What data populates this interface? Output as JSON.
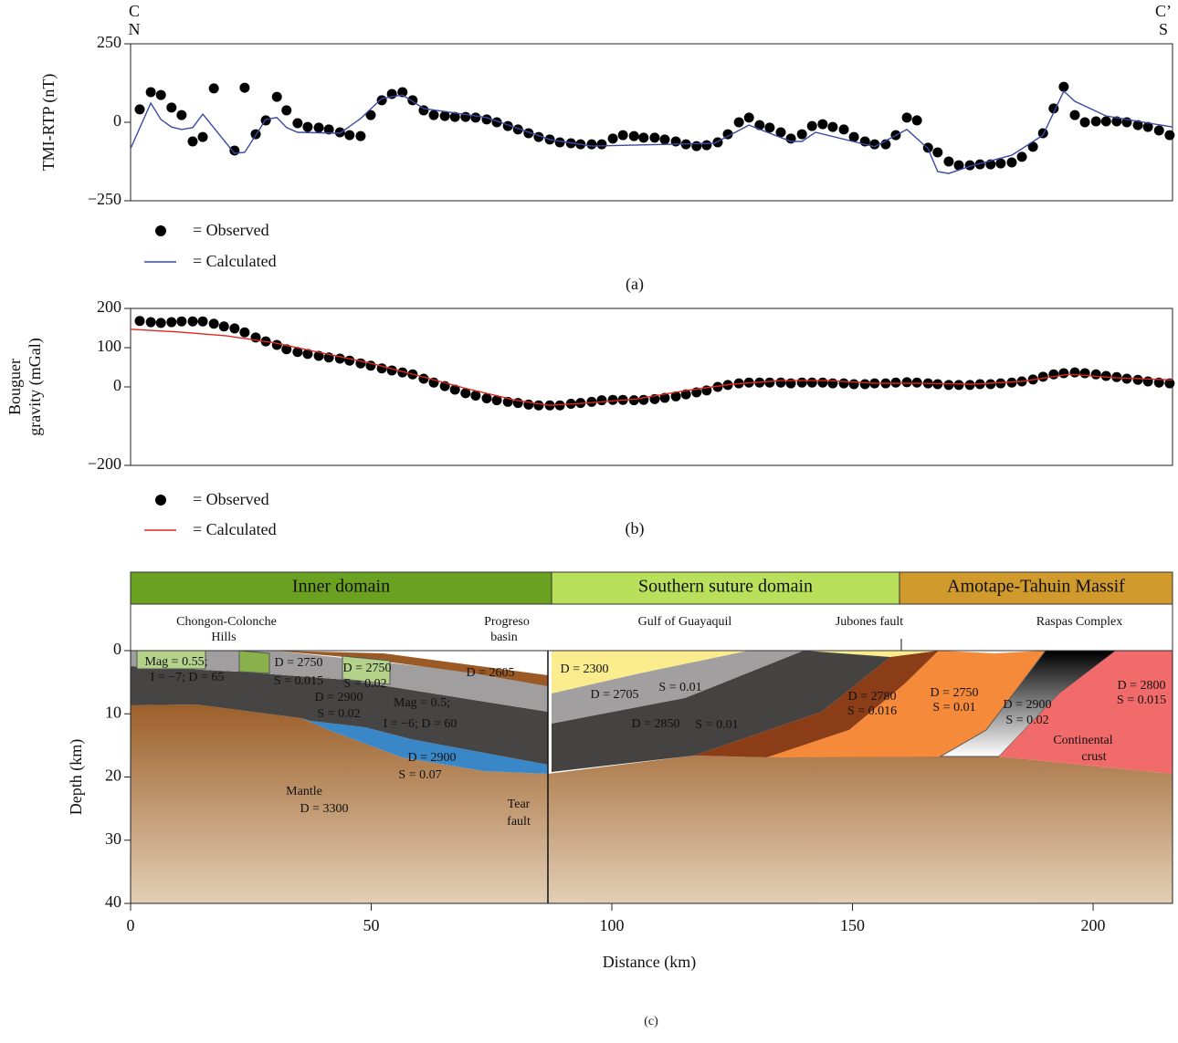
{
  "chart_data": [
    {
      "type": "scatter-line",
      "caption": "(a)",
      "ylabel": "TMI-RTP (nT)",
      "start_labels": [
        "C",
        "N"
      ],
      "end_labels": [
        "C’",
        "S"
      ],
      "xlim": [
        0,
        216.5
      ],
      "ylim": [
        -250,
        250
      ],
      "yticks": [
        250,
        0,
        {
          "value": -250,
          "label": "−250"
        }
      ],
      "series": [
        {
          "name": "= Observed",
          "color": "#000000",
          "x": [
            1.9,
            4.2,
            6.3,
            8.5,
            10.6,
            12.9,
            15.0,
            17.3,
            21.6,
            23.7,
            26.0,
            28.1,
            30.4,
            32.4,
            34.7,
            36.8,
            39.1,
            41.2,
            43.5,
            45.5,
            47.8,
            49.9,
            52.2,
            54.3,
            56.5,
            58.6,
            60.9,
            63.0,
            65.3,
            67.4,
            69.6,
            71.7,
            74.0,
            76.1,
            78.4,
            80.5,
            82.7,
            84.8,
            87.1,
            89.2,
            91.5,
            93.5,
            95.8,
            97.9,
            100.2,
            102.3,
            104.6,
            106.6,
            108.9,
            111.0,
            113.3,
            115.4,
            117.6,
            119.7,
            122.0,
            124.1,
            126.4,
            128.5,
            130.7,
            132.8,
            135.1,
            137.2,
            139.5,
            141.6,
            143.8,
            145.9,
            148.2,
            150.3,
            152.6,
            154.6,
            156.9,
            159.0,
            161.3,
            163.4,
            165.7,
            167.7,
            170.0,
            172.1,
            174.4,
            176.5,
            178.7,
            180.8,
            183.1,
            185.2,
            187.5,
            189.6,
            191.8,
            193.9,
            196.2,
            198.3,
            200.6,
            202.7,
            204.9,
            207.0,
            209.3,
            211.4,
            213.7,
            215.9
          ],
          "values": [
            41,
            96,
            87,
            47,
            23,
            -61,
            -47,
            108,
            -90,
            110,
            -38,
            6,
            81,
            38,
            -3,
            -15,
            -17,
            -23,
            -32,
            -41,
            -44,
            23,
            70,
            90,
            96,
            70,
            38,
            23,
            20,
            17,
            17,
            15,
            9,
            0,
            -12,
            -23,
            -35,
            -47,
            -55,
            -64,
            -67,
            -70,
            -70,
            -70,
            -52,
            -41,
            -44,
            -49,
            -49,
            -55,
            -61,
            -70,
            -76,
            -73,
            -64,
            -38,
            0,
            15,
            -9,
            -17,
            -32,
            -52,
            -38,
            -12,
            -6,
            -15,
            -23,
            -47,
            -61,
            -70,
            -70,
            -41,
            15,
            6,
            -81,
            -96,
            -125,
            -137,
            -137,
            -134,
            -134,
            -131,
            -128,
            -110,
            -78,
            -35,
            44,
            113,
            23,
            0,
            3,
            3,
            3,
            0,
            -9,
            -15,
            -26,
            -41
          ]
        },
        {
          "name": "= Calculated",
          "color": "#3b4aa0",
          "x": [
            0,
            4.2,
            6.3,
            8.5,
            10.6,
            12.9,
            15.0,
            21.6,
            23.7,
            28.1,
            30.4,
            32.4,
            34.7,
            43.5,
            47.8,
            52.2,
            56.5,
            60.9,
            74.0,
            87.1,
            95.8,
            121.3,
            128.5,
            137.2,
            139.5,
            142.3,
            154.6,
            161.3,
            165.7,
            167.7,
            170.0,
            174.4,
            183.1,
            189.6,
            193.9,
            196.2,
            202.7,
            216.5
          ],
          "values": [
            -84,
            61,
            9,
            -15,
            -23,
            -17,
            26,
            -99,
            -96,
            9,
            15,
            -17,
            -32,
            -35,
            12,
            76,
            87,
            44,
            15,
            -55,
            -76,
            -67,
            -9,
            -61,
            -61,
            -32,
            -78,
            -23,
            -84,
            -157,
            -163,
            -140,
            -105,
            -41,
            99,
            67,
            20,
            -15
          ]
        }
      ]
    },
    {
      "type": "scatter-line",
      "caption": "(b)",
      "ylabel": [
        "Bouguer",
        "gravity (mGal)"
      ],
      "xlim": [
        0,
        216.5
      ],
      "ylim": [
        -200,
        200
      ],
      "yticks": [
        200,
        100,
        0,
        {
          "value": -200,
          "label": "−200"
        }
      ],
      "series": [
        {
          "name": "= Observed",
          "color": "#000000",
          "x": [
            1.9,
            4.2,
            6.3,
            8.5,
            10.6,
            12.9,
            15.0,
            17.3,
            19.4,
            21.6,
            23.7,
            26.0,
            28.1,
            30.4,
            32.4,
            34.7,
            36.8,
            39.1,
            41.2,
            43.5,
            45.5,
            47.8,
            49.9,
            52.2,
            54.3,
            56.5,
            58.6,
            60.9,
            63.0,
            65.3,
            67.4,
            69.6,
            71.7,
            74.0,
            76.1,
            78.4,
            80.5,
            82.7,
            84.8,
            87.1,
            89.2,
            91.5,
            93.5,
            95.8,
            97.9,
            100.2,
            102.3,
            104.6,
            106.6,
            108.9,
            111.0,
            113.3,
            115.4,
            117.6,
            119.7,
            122.0,
            124.1,
            126.4,
            128.5,
            130.7,
            132.8,
            135.1,
            137.2,
            139.5,
            141.6,
            143.8,
            145.9,
            148.2,
            150.3,
            152.6,
            154.6,
            156.9,
            159.0,
            161.3,
            163.4,
            165.7,
            167.7,
            170.0,
            172.1,
            174.4,
            176.5,
            178.7,
            180.8,
            183.1,
            185.2,
            187.5,
            189.6,
            191.8,
            193.9,
            196.2,
            198.3,
            200.6,
            202.7,
            204.9,
            207.0,
            209.3,
            211.4,
            213.7,
            215.9
          ],
          "values": [
            168,
            165,
            163,
            165,
            167,
            167,
            167,
            161,
            154,
            149,
            139,
            126,
            116,
            107,
            96,
            89,
            84,
            79,
            75,
            72,
            67,
            60,
            54,
            47,
            42,
            37,
            32,
            21,
            11,
            2,
            -7,
            -16,
            -22,
            -29,
            -34,
            -38,
            -41,
            -45,
            -47,
            -47,
            -47,
            -43,
            -41,
            -38,
            -34,
            -33,
            -33,
            -34,
            -33,
            -31,
            -28,
            -24,
            -19,
            -14,
            -9,
            0,
            5,
            9,
            11,
            11,
            11,
            11,
            9,
            11,
            11,
            11,
            9,
            9,
            7,
            7,
            9,
            9,
            11,
            12,
            11,
            9,
            7,
            5,
            5,
            5,
            7,
            7,
            9,
            11,
            14,
            19,
            26,
            32,
            35,
            37,
            35,
            32,
            28,
            25,
            21,
            18,
            14,
            11,
            9
          ]
        },
        {
          "name": "= Calculated",
          "color": "#e0281e",
          "x": [
            0,
            10,
            20,
            30,
            40,
            50,
            60,
            70,
            80,
            87,
            95,
            105,
            115,
            125,
            135,
            145,
            155,
            165,
            175,
            185,
            195,
            205,
            216.5
          ],
          "values": [
            147,
            140,
            130,
            112,
            86,
            60,
            28,
            -5,
            -34,
            -47,
            -41,
            -31,
            -10,
            7,
            16,
            16,
            9,
            9,
            7,
            14,
            32,
            23,
            18
          ]
        }
      ]
    },
    {
      "type": "cross-section",
      "caption": "(c)",
      "xlabel": "Distance (km)",
      "ylabel": "Depth (km)",
      "xlim": [
        0,
        216.5
      ],
      "ylim": [
        0,
        40
      ],
      "xticks": [
        0,
        50,
        100,
        150,
        200
      ],
      "yticks": [
        0,
        10,
        20,
        30,
        40
      ],
      "domains": [
        {
          "name": "Inner domain",
          "color": "#6aa121"
        },
        {
          "name": "Southern suture domain",
          "color": "#b8e05a"
        },
        {
          "name": "Amotape-Tahuin Massif",
          "color": "#d09a2c"
        }
      ],
      "places": [
        "Chongon-Colonche",
        "Hills",
        "Progreso",
        "basin",
        "Gulf of Guayaquil",
        "Jubones fault",
        "Raspas Complex"
      ],
      "labels": [
        "Mag = 0.55;",
        "I = −7; D = 65",
        "D = 2750",
        "S = 0.015",
        "D = 2750",
        "S = 0.02",
        "D = 2605",
        "D = 2900",
        "S = 0.02",
        "Mag = 0.5;",
        "I = −6; D = 60",
        "D = 2900",
        "S = 0.07",
        "Mantle",
        "D = 3300",
        "Tear",
        "fault",
        "D = 2300",
        "D = 2705",
        "S = 0.01",
        "D = 2850",
        "S = 0.01",
        "D = 2780",
        "S = 0.016",
        "D = 2750",
        "S = 0.01",
        "D = 2900",
        "S = 0.02",
        "D = 2800",
        "S = 0.015",
        "Continental",
        "crust"
      ]
    }
  ]
}
